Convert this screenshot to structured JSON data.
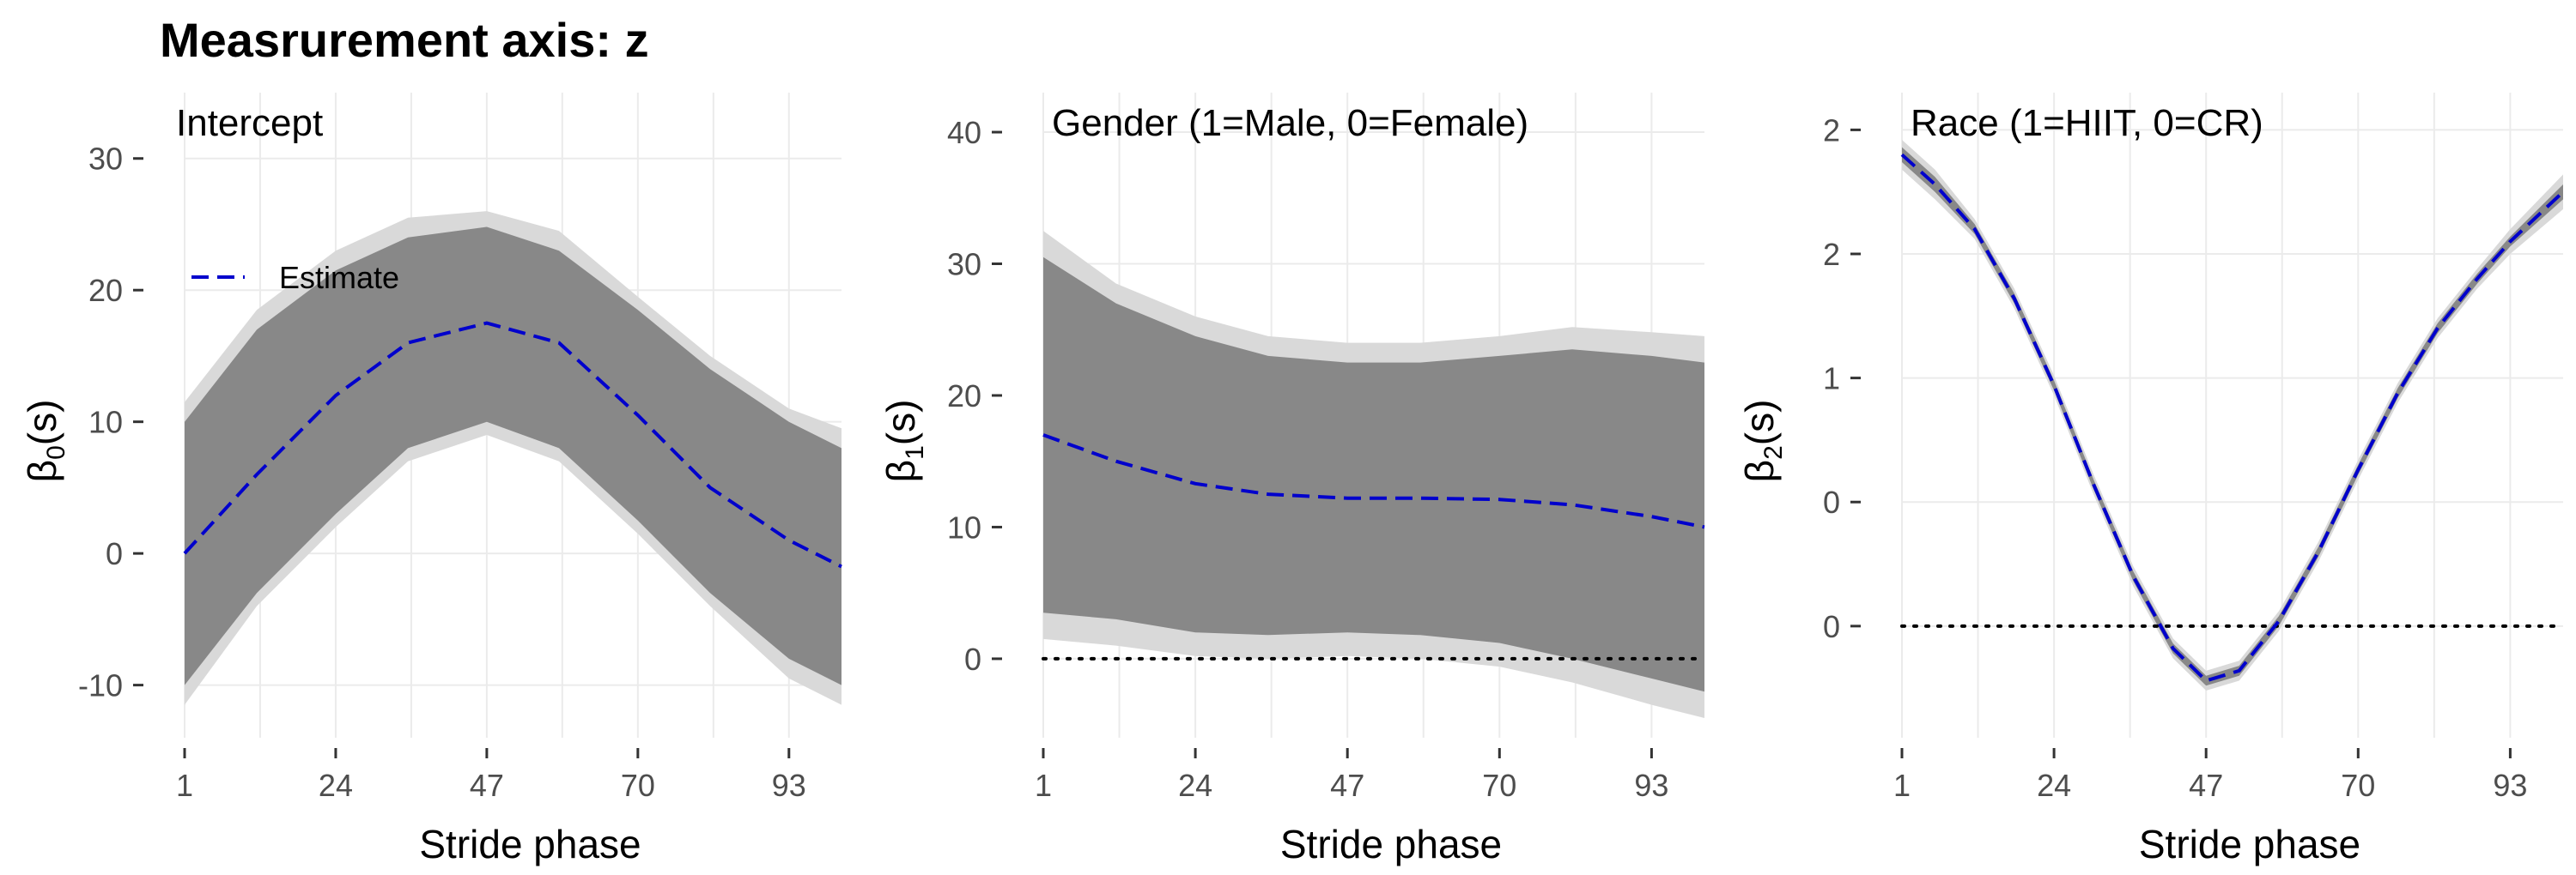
{
  "figure_title": "Measrurement axis: z",
  "colors": {
    "ci_outer": "#d9d9d9",
    "ci_inner": "#888888",
    "estimate": "#0000cc",
    "zero_line": "#000000",
    "grid": "#ebebeb"
  },
  "chart_data": [
    {
      "type": "area",
      "title": "Intercept",
      "xlabel": "Stride phase",
      "ylabel": "β0(s)",
      "ylabel_main": "β",
      "ylabel_sub": "0",
      "ylabel_suffix": "(s)",
      "legend": {
        "label": "Estimate",
        "placement": "top-left"
      },
      "zero_line": false,
      "xlim": [
        1,
        101
      ],
      "ylim": [
        -14,
        35
      ],
      "x_ticks": [
        1,
        24,
        47,
        70,
        93
      ],
      "y_ticks": [
        -10,
        0,
        10,
        20,
        30
      ],
      "y_tick_labels": [
        "-10",
        "0",
        "10",
        "20",
        "30"
      ],
      "x": [
        1,
        12,
        24,
        35,
        47,
        58,
        70,
        81,
        93,
        101
      ],
      "estimate": [
        0,
        6,
        12,
        16,
        17.5,
        16,
        10.5,
        5,
        1,
        -1
      ],
      "inner_upper": [
        10,
        17,
        21.5,
        24,
        24.8,
        23,
        18.5,
        14,
        10,
        8
      ],
      "inner_lower": [
        -10,
        -3,
        3,
        8,
        10,
        8,
        2.5,
        -3,
        -8,
        -10
      ],
      "outer_upper": [
        11.5,
        18.5,
        23,
        25.5,
        26,
        24.5,
        19.5,
        15,
        11,
        9.5
      ],
      "outer_lower": [
        -11.5,
        -4,
        2,
        7,
        9,
        7,
        1.5,
        -4,
        -9.5,
        -11.5
      ]
    },
    {
      "type": "area",
      "title": "Gender (1=Male, 0=Female)",
      "xlabel": "Stride phase",
      "ylabel": "β1(s)",
      "ylabel_main": "β",
      "ylabel_sub": "1",
      "ylabel_suffix": "(s)",
      "zero_line": true,
      "xlim": [
        1,
        101
      ],
      "ylim": [
        -6,
        43
      ],
      "x_ticks": [
        1,
        24,
        47,
        70,
        93
      ],
      "y_ticks": [
        0,
        10,
        20,
        30,
        40
      ],
      "y_tick_labels": [
        "0",
        "10",
        "20",
        "30",
        "40"
      ],
      "x": [
        1,
        12,
        24,
        35,
        47,
        58,
        70,
        81,
        93,
        101
      ],
      "estimate": [
        17,
        15,
        13.3,
        12.5,
        12.2,
        12.2,
        12.1,
        11.7,
        10.8,
        10
      ],
      "inner_upper": [
        30.5,
        27,
        24.5,
        23,
        22.5,
        22.5,
        23,
        23.5,
        23,
        22.5
      ],
      "inner_lower": [
        3.5,
        3,
        2,
        1.8,
        2,
        1.8,
        1.2,
        0,
        -1.5,
        -2.5
      ],
      "outer_upper": [
        32.5,
        28.5,
        26,
        24.5,
        24,
        24,
        24.5,
        25.2,
        24.8,
        24.5
      ],
      "outer_lower": [
        1.5,
        1,
        0.2,
        0,
        0.2,
        0,
        -0.6,
        -1.8,
        -3.5,
        -4.5
      ]
    },
    {
      "type": "area",
      "title": "Race (1=HIIT, 0=CR)",
      "xlabel": "Stride phase",
      "ylabel": "β2(s)",
      "ylabel_main": "β",
      "ylabel_sub": "2",
      "ylabel_suffix": "(s)",
      "zero_line": true,
      "xlim": [
        1,
        101
      ],
      "ylim": [
        -0.45,
        2.15
      ],
      "x_ticks": [
        1,
        24,
        47,
        70,
        93
      ],
      "y_ticks": [
        0,
        0.5,
        1,
        1.5,
        2
      ],
      "y_tick_labels": [
        "0",
        "0",
        "1",
        "2",
        "2"
      ],
      "x": [
        1,
        6,
        12,
        18,
        24,
        30,
        36,
        42,
        47,
        52,
        58,
        64,
        70,
        76,
        82,
        88,
        93,
        101
      ],
      "estimate": [
        1.9,
        1.78,
        1.6,
        1.32,
        0.97,
        0.57,
        0.2,
        -0.09,
        -0.22,
        -0.18,
        0.02,
        0.3,
        0.63,
        0.94,
        1.2,
        1.4,
        1.55,
        1.75
      ],
      "inner_upper": [
        1.93,
        1.81,
        1.62,
        1.34,
        0.99,
        0.59,
        0.22,
        -0.07,
        -0.2,
        -0.16,
        0.04,
        0.32,
        0.65,
        0.96,
        1.22,
        1.42,
        1.57,
        1.78
      ],
      "inner_lower": [
        1.87,
        1.75,
        1.58,
        1.3,
        0.95,
        0.55,
        0.18,
        -0.11,
        -0.24,
        -0.2,
        0.0,
        0.28,
        0.61,
        0.92,
        1.18,
        1.38,
        1.53,
        1.72
      ],
      "outer_upper": [
        1.96,
        1.84,
        1.64,
        1.36,
        1.01,
        0.61,
        0.24,
        -0.05,
        -0.18,
        -0.14,
        0.06,
        0.34,
        0.67,
        0.98,
        1.24,
        1.44,
        1.6,
        1.82
      ],
      "outer_lower": [
        1.84,
        1.72,
        1.56,
        1.28,
        0.93,
        0.53,
        0.16,
        -0.13,
        -0.26,
        -0.22,
        -0.02,
        0.26,
        0.59,
        0.9,
        1.16,
        1.36,
        1.5,
        1.68
      ]
    }
  ]
}
